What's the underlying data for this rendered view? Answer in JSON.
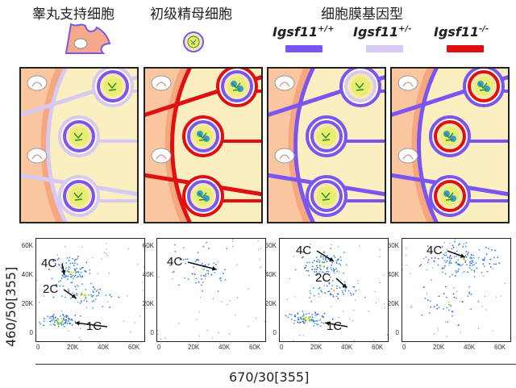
{
  "header": {
    "sertoli_label": "睾丸支持细胞",
    "spermatocyte_label": "初级精母细胞",
    "genotype_title": "细胞膜基因型"
  },
  "legend": [
    {
      "gene": "Igsf11",
      "sup": "+/+",
      "color": "#7a55f0"
    },
    {
      "gene": "Igsf11",
      "sup": "+/-",
      "color": "#d6c9f3"
    },
    {
      "gene": "Igsf11",
      "sup": "-/-",
      "color": "#e01010"
    }
  ],
  "colors": {
    "wt_membrane": "#7a55f0",
    "het_membrane": "#d6c9f3",
    "ko_membrane": "#e01010",
    "cytoplasm": "#f8e8b0",
    "nucleus": "#e8ee70",
    "chromatin": "#2c8a2c",
    "blob": "#3a9ad8"
  },
  "plots": {
    "y_axis_label": "460/50[355]",
    "x_axis_label": "670/30[355]",
    "y_ticks": [
      "60K",
      "40K",
      "20K",
      "0"
    ],
    "x_ticks": [
      "0",
      "20K",
      "40K",
      "60K"
    ],
    "panels": [
      {
        "labels": [
          "4C",
          "2C",
          "1C"
        ]
      },
      {
        "labels": [
          "4C"
        ]
      },
      {
        "labels": [
          "4C",
          "2C",
          "1C"
        ]
      },
      {
        "labels": [
          "4C"
        ]
      }
    ]
  }
}
